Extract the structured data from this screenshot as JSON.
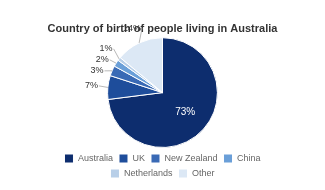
{
  "chart_data": {
    "type": "pie",
    "title": "Country of birth of people living in Australia",
    "categories": [
      "Australia",
      "UK",
      "New Zealand",
      "China",
      "Netherlands",
      "Other"
    ],
    "values": [
      73,
      7,
      3,
      2,
      1,
      14
    ],
    "value_labels": [
      "73%",
      "7%",
      "3%",
      "2%",
      "1%",
      "14%"
    ],
    "colors": [
      "#0d2d6e",
      "#1e4d9b",
      "#3a6ab5",
      "#6a9fd8",
      "#b8cfe8",
      "#dce8f5"
    ],
    "data_labels": true,
    "legend": "bottom"
  }
}
